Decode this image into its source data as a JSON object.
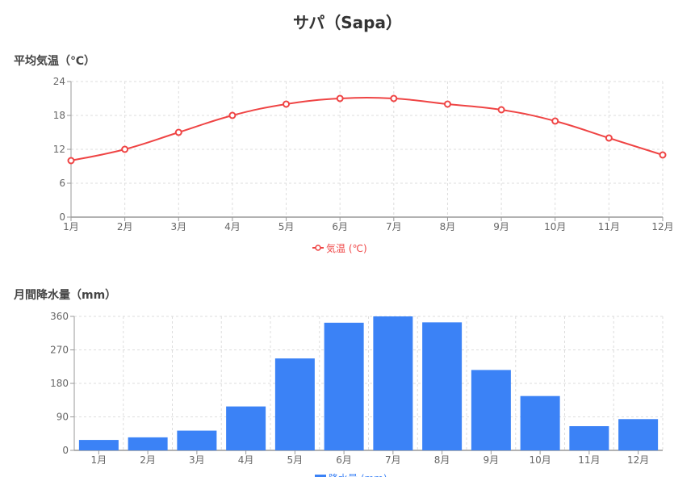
{
  "title": "サパ（Sapa）",
  "chart_data": [
    {
      "type": "line",
      "title": "平均気温（℃）",
      "categories": [
        "1月",
        "2月",
        "3月",
        "4月",
        "5月",
        "6月",
        "7月",
        "8月",
        "9月",
        "10月",
        "11月",
        "12月"
      ],
      "series": [
        {
          "name": "気温 (℃)",
          "values": [
            10,
            12,
            15,
            18,
            20,
            21,
            21,
            20,
            19,
            17,
            14,
            11
          ],
          "color": "#ef4444"
        }
      ],
      "ylim": [
        0,
        24
      ],
      "yticks": [
        "0",
        "6",
        "12",
        "18",
        "24"
      ],
      "grid": true,
      "legend": "bottom"
    },
    {
      "type": "bar",
      "title": "月間降水量（mm）",
      "categories": [
        "1月",
        "2月",
        "3月",
        "4月",
        "5月",
        "6月",
        "7月",
        "8月",
        "9月",
        "10月",
        "11月",
        "12月"
      ],
      "series": [
        {
          "name": "降水量 (mm)",
          "values": [
            28,
            35,
            53,
            118,
            247,
            343,
            360,
            344,
            216,
            146,
            65,
            84
          ],
          "color": "#3b82f6"
        }
      ],
      "ylim": [
        0,
        360
      ],
      "yticks": [
        "0",
        "90",
        "180",
        "270",
        "360"
      ],
      "grid": true,
      "legend": "bottom"
    }
  ]
}
